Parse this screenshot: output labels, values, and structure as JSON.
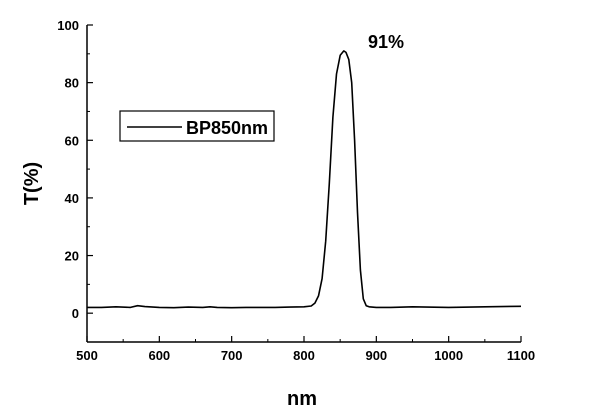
{
  "chart_data": {
    "type": "line",
    "xlabel": "nm",
    "ylabel": "T(%)",
    "xlim": [
      500,
      1100
    ],
    "ylim": [
      -10,
      100
    ],
    "x_ticks": [
      500,
      600,
      700,
      800,
      900,
      1000,
      1100
    ],
    "y_ticks": [
      0,
      20,
      40,
      60,
      80,
      100
    ],
    "grid": false,
    "legend_position": "top-left",
    "annotation": "91%",
    "series": [
      {
        "name": "BP850nm",
        "color": "#000000",
        "x": [
          500,
          520,
          540,
          560,
          570,
          580,
          600,
          620,
          640,
          660,
          670,
          680,
          700,
          720,
          740,
          760,
          780,
          800,
          810,
          815,
          820,
          825,
          830,
          835,
          840,
          845,
          850,
          855,
          858,
          862,
          866,
          870,
          874,
          878,
          882,
          886,
          890,
          900,
          920,
          950,
          1000,
          1050,
          1100
        ],
        "y": [
          2,
          2,
          2.2,
          2,
          2.6,
          2.3,
          2,
          1.9,
          2.1,
          2,
          2.2,
          2,
          1.9,
          2,
          2,
          2,
          2.1,
          2.2,
          2.5,
          3.5,
          6,
          12,
          25,
          45,
          68,
          83,
          89.5,
          91,
          90.5,
          88,
          80,
          60,
          35,
          15,
          5,
          2.6,
          2.2,
          2,
          2,
          2.2,
          2,
          2.2,
          2.4
        ]
      }
    ]
  }
}
